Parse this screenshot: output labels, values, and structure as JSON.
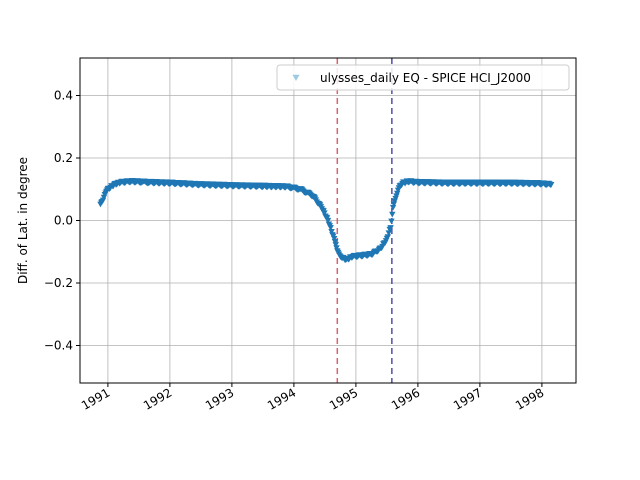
{
  "chart_data": {
    "type": "scatter",
    "title": "",
    "xlabel": "",
    "ylabel": "Diff. of Lat. in degree",
    "xlim": [
      1990.55,
      1998.55
    ],
    "ylim": [
      -0.52,
      0.52
    ],
    "x_ticks": [
      1991,
      1992,
      1993,
      1994,
      1995,
      1996,
      1997,
      1998
    ],
    "x_tick_labels": [
      "1991",
      "1992",
      "1993",
      "1994",
      "1995",
      "1996",
      "1997",
      "1998"
    ],
    "y_ticks": [
      -0.4,
      -0.2,
      0.0,
      0.2,
      0.4
    ],
    "y_tick_labels": [
      "−0.4",
      "−0.2",
      "0.0",
      "0.2",
      "0.4"
    ],
    "grid": true,
    "legend_position": "top-right",
    "series": [
      {
        "name": "ulysses_daily EQ - SPICE HCI_J2000",
        "marker": "triangle-down",
        "color": "#1f77b4",
        "legend_color": "#9ecae1",
        "x": [
          1990.88,
          1990.95,
          1991.0,
          1991.1,
          1991.2,
          1991.35,
          1991.5,
          1991.7,
          1992.0,
          1992.5,
          1993.0,
          1993.5,
          1993.9,
          1994.1,
          1994.3,
          1994.45,
          1994.55,
          1994.65,
          1994.7,
          1994.78,
          1994.85,
          1994.95,
          1995.1,
          1995.25,
          1995.4,
          1995.5,
          1995.56,
          1995.6,
          1995.68,
          1995.75,
          1995.85,
          1996.0,
          1996.5,
          1997.0,
          1997.5,
          1998.0,
          1998.15
        ],
        "y": [
          0.05,
          0.08,
          0.1,
          0.115,
          0.122,
          0.125,
          0.124,
          0.122,
          0.12,
          0.115,
          0.112,
          0.11,
          0.108,
          0.1,
          0.08,
          0.04,
          0.0,
          -0.06,
          -0.1,
          -0.12,
          -0.125,
          -0.115,
          -0.112,
          -0.108,
          -0.09,
          -0.06,
          -0.02,
          0.04,
          0.1,
          0.12,
          0.125,
          0.122,
          0.12,
          0.12,
          0.12,
          0.118,
          0.115
        ]
      }
    ],
    "vlines": [
      {
        "x": 1994.7,
        "color": "#e06070",
        "style": "dashed"
      },
      {
        "x": 1995.58,
        "color": "#5050a8",
        "style": "dashed"
      }
    ]
  }
}
